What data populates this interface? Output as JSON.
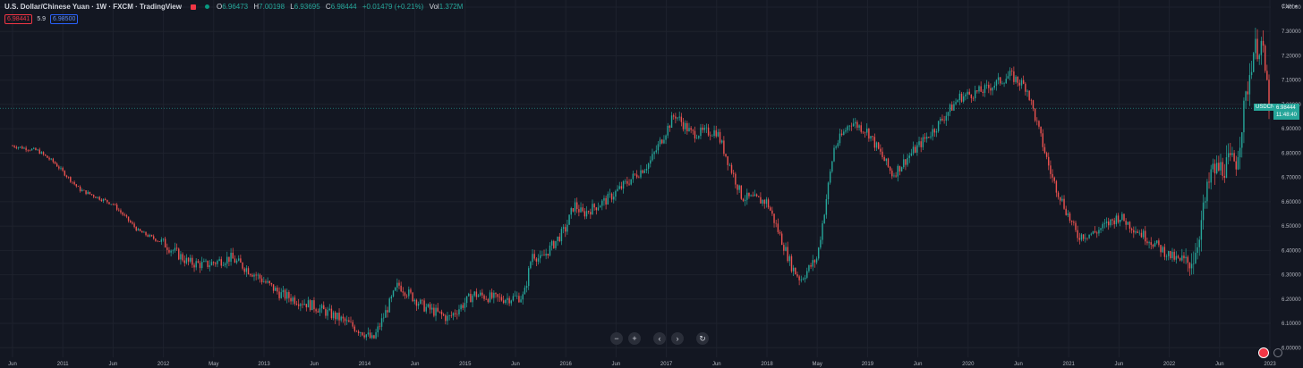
{
  "header": {
    "symbol_title": "U.S. Dollar/Chinese Yuan · 1W · FXCM · TradingView",
    "ohlc": [
      {
        "label": "O",
        "value": "6.96473"
      },
      {
        "label": "H",
        "value": "7.00198"
      },
      {
        "label": "L",
        "value": "6.93695"
      },
      {
        "label": "C",
        "value": "6.98444"
      },
      {
        "label": "",
        "value": "+0.01479 (+0.21%)"
      },
      {
        "label": "Vol",
        "value": "1.372M"
      }
    ],
    "sell_price": "6.98441",
    "spread": "5.9",
    "buy_price": "6.98500"
  },
  "currency_label": "CNH ▾",
  "price_label": {
    "symbol": "USDCNH",
    "price": "6.98444",
    "countdown": "11:48:40"
  },
  "colors": {
    "background": "#131722",
    "up": "#26a69a",
    "down": "#ef5350",
    "grid": "#1e222d",
    "axis_text": "#b2b5be"
  },
  "nav_buttons": {
    "zoom_out": "−",
    "zoom_in": "+",
    "prev": "‹",
    "next": "›",
    "reset": "↻"
  },
  "chart_data": {
    "type": "candlestick",
    "x_tick_labels": [
      "Jun",
      "2011",
      "Jun",
      "2012",
      "May",
      "2013",
      "Jun",
      "2014",
      "Jun",
      "2015",
      "Jun",
      "2016",
      "Jun",
      "2017",
      "Jun",
      "2018",
      "May",
      "2019",
      "Jun",
      "2020",
      "Jun",
      "2021",
      "Jun",
      "2022",
      "Jun",
      "2023"
    ],
    "y_tick_labels": [
      "7.40000",
      "7.30000",
      "7.20000",
      "7.10000",
      "7.00000",
      "6.90000",
      "6.80000",
      "6.70000",
      "6.60000",
      "6.50000",
      "6.40000",
      "6.30000",
      "6.20000",
      "6.10000",
      "6.00000"
    ],
    "ylim": [
      5.99,
      7.4
    ],
    "trend": {
      "x": [
        "2010-06",
        "2010-09",
        "2010-11",
        "2011-02",
        "2011-06",
        "2011-09",
        "2011-12",
        "2012-03",
        "2012-05",
        "2012-08",
        "2012-11",
        "2013-02",
        "2013-06",
        "2013-09",
        "2013-12",
        "2014-01",
        "2014-04",
        "2014-07",
        "2014-10",
        "2015-01",
        "2015-04",
        "2015-07",
        "2015-08",
        "2015-09",
        "2015-12",
        "2016-01",
        "2016-02",
        "2016-05",
        "2016-07",
        "2016-10",
        "2017-01",
        "2017-03",
        "2017-06",
        "2017-09",
        "2017-12",
        "2018-03",
        "2018-04",
        "2018-06",
        "2018-08",
        "2018-10",
        "2018-12",
        "2019-03",
        "2019-05",
        "2019-08",
        "2019-11",
        "2020-02",
        "2020-05",
        "2020-07",
        "2020-10",
        "2021-01",
        "2021-03",
        "2021-06",
        "2021-09",
        "2021-12",
        "2022-02",
        "2022-03",
        "2022-05",
        "2022-08",
        "2022-10",
        "2022-11",
        "2022-12"
      ],
      "close": [
        6.83,
        6.81,
        6.76,
        6.65,
        6.59,
        6.48,
        6.43,
        6.35,
        6.34,
        6.37,
        6.3,
        6.22,
        6.17,
        6.12,
        6.06,
        6.03,
        6.26,
        6.17,
        6.12,
        6.22,
        6.2,
        6.21,
        6.39,
        6.36,
        6.49,
        6.59,
        6.55,
        6.61,
        6.67,
        6.76,
        6.96,
        6.88,
        6.89,
        6.62,
        6.6,
        6.33,
        6.28,
        6.37,
        6.82,
        6.93,
        6.89,
        6.71,
        6.79,
        6.9,
        7.03,
        7.06,
        7.12,
        7.07,
        6.7,
        6.46,
        6.47,
        6.54,
        6.46,
        6.38,
        6.34,
        6.38,
        6.72,
        6.77,
        7.22,
        7.25,
        6.98
      ]
    },
    "last_price": 6.98444
  }
}
